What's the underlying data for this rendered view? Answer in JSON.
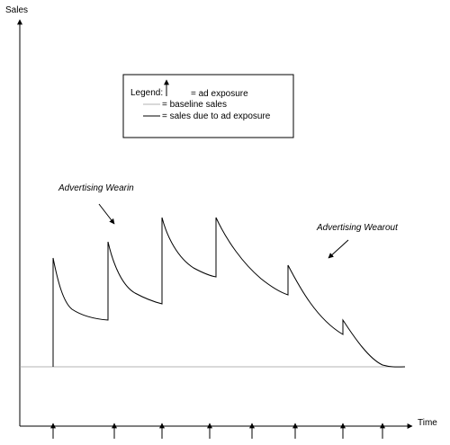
{
  "axes": {
    "y_label": "Sales",
    "x_label": "Time"
  },
  "legend": {
    "title": "Legend:",
    "exposure_label": "= ad exposure",
    "baseline_label": "= baseline sales",
    "sales_label": "= sales due to ad exposure"
  },
  "annotations": {
    "wearin": "Advertising Wearin",
    "wearout": "Advertising Wearout"
  },
  "colors": {
    "baseline": "#9a9a9a",
    "curve": "#000000"
  },
  "exposures": {
    "count": 8
  }
}
